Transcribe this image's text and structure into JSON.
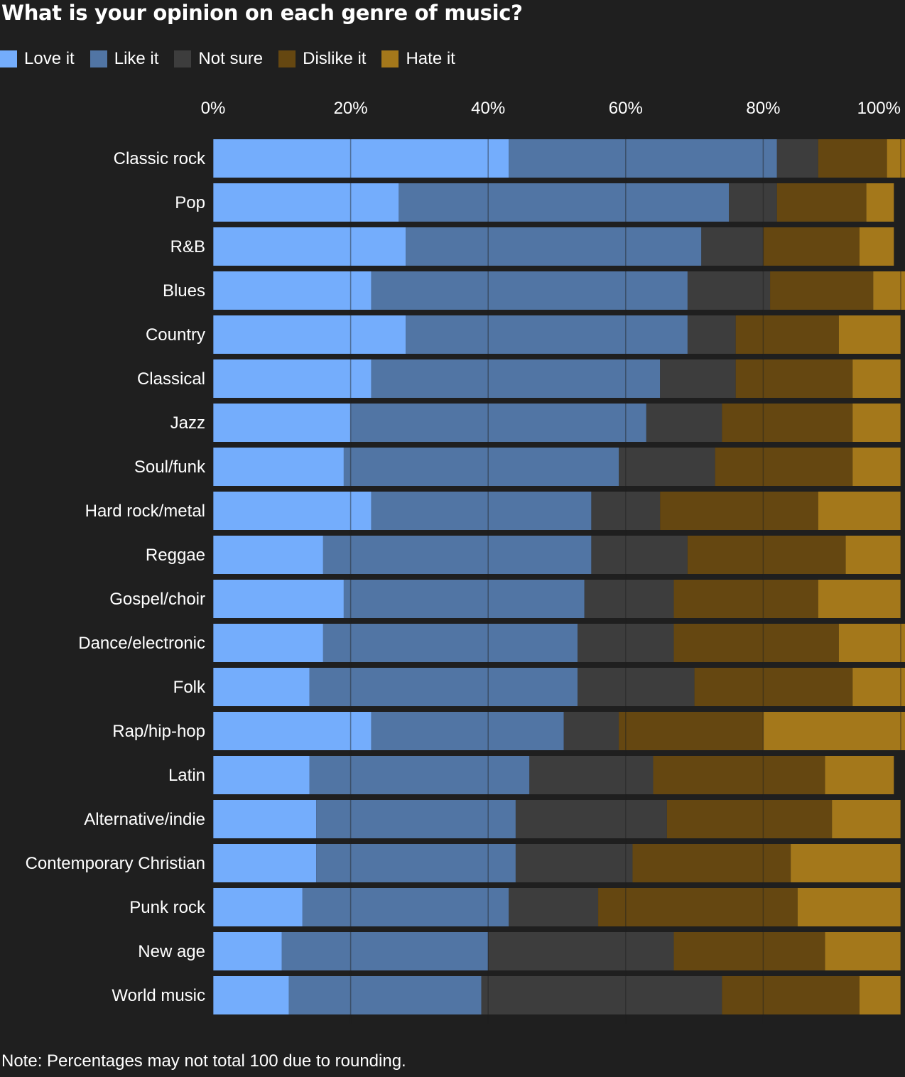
{
  "title": "What is your opinion on each genre of music?",
  "note": "Note: Percentages may not total 100 due to rounding.",
  "colors": {
    "background": "#1f1f1f",
    "love": "#74adfc",
    "like": "#5175a4",
    "not_sure": "#3d3d3d",
    "dislike": "#654711",
    "hate": "#a4781b",
    "gridline": "#2a2a2a"
  },
  "legend": [
    {
      "label": "Love it",
      "color": "#74adfc"
    },
    {
      "label": "Like it",
      "color": "#5175a4"
    },
    {
      "label": "Not sure",
      "color": "#3d3d3d"
    },
    {
      "label": "Dislike it",
      "color": "#654711"
    },
    {
      "label": "Hate it",
      "color": "#a4781b"
    }
  ],
  "chart_data": {
    "type": "bar",
    "orientation": "horizontal",
    "stacked": true,
    "title": "What is your opinion on each genre of music?",
    "xlim": [
      0,
      100
    ],
    "x_ticks": [
      "0%",
      "20%",
      "40%",
      "60%",
      "80%",
      "100%"
    ],
    "x_tick_values": [
      0,
      20,
      40,
      60,
      80,
      100
    ],
    "grid": true,
    "legend_position": "top-left",
    "categories": [
      "Classic rock",
      "Pop",
      "R&B",
      "Blues",
      "Country",
      "Classical",
      "Jazz",
      "Soul/funk",
      "Hard rock/metal",
      "Reggae",
      "Gospel/choir",
      "Dance/electronic",
      "Folk",
      "Rap/hip-hop",
      "Latin",
      "Alternative/indie",
      "Contemporary Christian",
      "Punk rock",
      "New age",
      "World music"
    ],
    "series": [
      {
        "name": "Love it",
        "values": [
          43,
          27,
          28,
          23,
          28,
          23,
          20,
          19,
          23,
          16,
          19,
          16,
          14,
          23,
          14,
          15,
          15,
          13,
          10,
          11
        ]
      },
      {
        "name": "Like it",
        "values": [
          39,
          48,
          43,
          46,
          41,
          42,
          43,
          40,
          32,
          39,
          35,
          37,
          39,
          28,
          32,
          29,
          29,
          30,
          30,
          28
        ]
      },
      {
        "name": "Not sure",
        "values": [
          6,
          7,
          9,
          12,
          7,
          11,
          11,
          14,
          10,
          14,
          13,
          14,
          17,
          8,
          18,
          22,
          17,
          13,
          27,
          35
        ]
      },
      {
        "name": "Dislike it",
        "values": [
          10,
          13,
          14,
          15,
          15,
          17,
          19,
          20,
          23,
          23,
          21,
          24,
          23,
          21,
          25,
          24,
          23,
          29,
          22,
          20
        ]
      },
      {
        "name": "Hate it",
        "values": [
          3,
          4,
          5,
          5,
          9,
          7,
          7,
          7,
          12,
          8,
          12,
          10,
          8,
          22,
          10,
          10,
          16,
          15,
          11,
          6
        ]
      }
    ]
  }
}
